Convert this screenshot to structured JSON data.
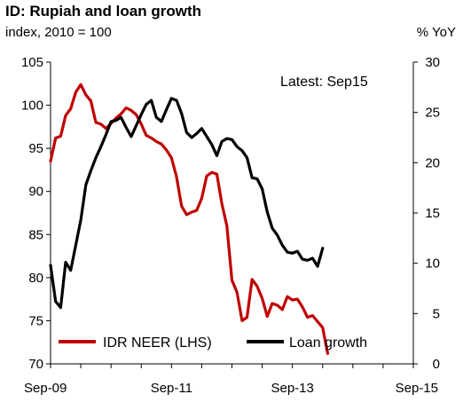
{
  "chart_data": {
    "type": "line",
    "title": "ID: Rupiah and loan growth",
    "subtitle": "index, 2010 = 100",
    "y2label": "% YoY",
    "annotation": "Latest: Sep15",
    "x_tick_labels": [
      "Sep-09",
      "Sep-11",
      "Sep-13",
      "Sep-15"
    ],
    "xlim_months": [
      0,
      72
    ],
    "ylim": [
      70,
      105
    ],
    "yticks": [
      70,
      75,
      80,
      85,
      90,
      95,
      100,
      105
    ],
    "y2lim": [
      0,
      30
    ],
    "y2ticks": [
      0,
      5,
      10,
      15,
      20,
      25,
      30
    ],
    "legend_placement": "bottom-left",
    "grid": false,
    "series": [
      {
        "name": "IDR NEER (LHS)",
        "axis": "left",
        "color": "#c00000",
        "points": [
          [
            0,
            93.5
          ],
          [
            1,
            96.2
          ],
          [
            2,
            96.4
          ],
          [
            3,
            98.8
          ],
          [
            4,
            99.6
          ],
          [
            5,
            101.5
          ],
          [
            6,
            102.4
          ],
          [
            7,
            101.2
          ],
          [
            8,
            100.5
          ],
          [
            9,
            98.0
          ],
          [
            10,
            97.8
          ],
          [
            11,
            97.3
          ],
          [
            12,
            97.9
          ],
          [
            13,
            98.5
          ],
          [
            14,
            99.0
          ],
          [
            15,
            99.7
          ],
          [
            16,
            99.4
          ],
          [
            17,
            98.9
          ],
          [
            18,
            97.8
          ],
          [
            19,
            96.5
          ],
          [
            20,
            96.2
          ],
          [
            21,
            95.8
          ],
          [
            22,
            95.5
          ],
          [
            23,
            94.8
          ],
          [
            24,
            93.9
          ],
          [
            25,
            91.7
          ],
          [
            26,
            88.3
          ],
          [
            27,
            87.3
          ],
          [
            28,
            87.6
          ],
          [
            29,
            87.8
          ],
          [
            30,
            89.2
          ],
          [
            31,
            91.8
          ],
          [
            32,
            92.2
          ],
          [
            33,
            92.0
          ],
          [
            34,
            88.6
          ],
          [
            35,
            86.0
          ],
          [
            36,
            79.7
          ],
          [
            37,
            78.3
          ],
          [
            38,
            75.0
          ],
          [
            39,
            75.4
          ],
          [
            40,
            79.8
          ],
          [
            41,
            79.0
          ],
          [
            42,
            77.6
          ],
          [
            43,
            75.5
          ],
          [
            44,
            77.0
          ],
          [
            45,
            76.8
          ],
          [
            46,
            76.3
          ],
          [
            47,
            77.8
          ],
          [
            48,
            77.4
          ],
          [
            49,
            77.5
          ],
          [
            50,
            76.6
          ],
          [
            51,
            75.4
          ],
          [
            52,
            75.6
          ],
          [
            53,
            74.9
          ],
          [
            54,
            74.2
          ],
          [
            55,
            71.2
          ]
        ]
      },
      {
        "name": "Loan growth",
        "axis": "right",
        "color": "#000000",
        "points": [
          [
            0,
            9.8
          ],
          [
            1,
            6.2
          ],
          [
            2,
            5.6
          ],
          [
            3,
            10.1
          ],
          [
            4,
            9.3
          ],
          [
            5,
            11.8
          ],
          [
            6,
            14.3
          ],
          [
            7,
            17.8
          ],
          [
            8,
            19.2
          ],
          [
            9,
            20.5
          ],
          [
            10,
            21.6
          ],
          [
            11,
            22.8
          ],
          [
            12,
            24.1
          ],
          [
            13,
            24.2
          ],
          [
            14,
            24.5
          ],
          [
            15,
            23.5
          ],
          [
            16,
            22.6
          ],
          [
            17,
            23.7
          ],
          [
            18,
            24.8
          ],
          [
            19,
            25.8
          ],
          [
            20,
            26.2
          ],
          [
            21,
            24.5
          ],
          [
            22,
            24.1
          ],
          [
            23,
            25.3
          ],
          [
            24,
            26.4
          ],
          [
            25,
            26.2
          ],
          [
            26,
            24.9
          ],
          [
            27,
            23.0
          ],
          [
            28,
            22.5
          ],
          [
            29,
            22.9
          ],
          [
            30,
            23.4
          ],
          [
            31,
            22.6
          ],
          [
            32,
            21.8
          ],
          [
            33,
            20.7
          ],
          [
            34,
            22.1
          ],
          [
            35,
            22.4
          ],
          [
            36,
            22.3
          ],
          [
            37,
            21.6
          ],
          [
            38,
            21.2
          ],
          [
            39,
            20.5
          ],
          [
            40,
            18.5
          ],
          [
            41,
            18.4
          ],
          [
            42,
            17.4
          ],
          [
            43,
            15.1
          ],
          [
            44,
            13.5
          ],
          [
            45,
            12.8
          ],
          [
            46,
            11.8
          ],
          [
            47,
            11.1
          ],
          [
            48,
            11.0
          ],
          [
            49,
            11.2
          ],
          [
            50,
            10.4
          ],
          [
            51,
            10.3
          ],
          [
            52,
            10.5
          ],
          [
            53,
            9.7
          ],
          [
            54,
            11.5
          ]
        ]
      }
    ]
  }
}
